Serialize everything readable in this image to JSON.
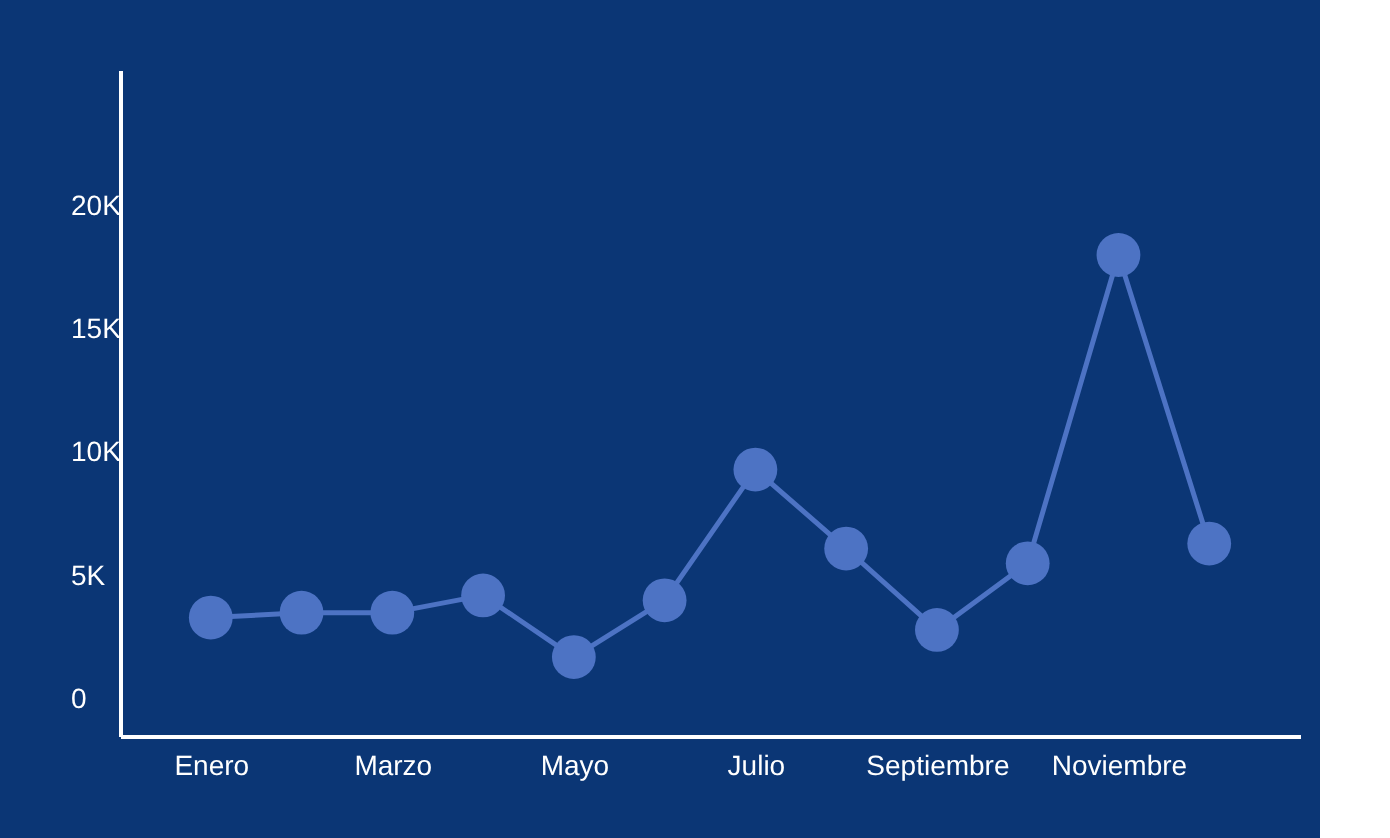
{
  "chart_data": {
    "type": "line",
    "categories": [
      "Enero",
      null,
      "Marzo",
      null,
      "Mayo",
      null,
      "Julio",
      null,
      "Septiembre",
      null,
      "Noviembre",
      null
    ],
    "series": [
      {
        "color": "#4d73c4",
        "values": [
          3.3,
          3.5,
          3.5,
          4.2,
          1.7,
          4.0,
          9.3,
          6.1,
          2.8,
          5.5,
          18.0,
          6.3
        ]
      }
    ],
    "ylim": [
      -1.5,
      25.5
    ],
    "yticks": [
      0,
      {
        "value": 5,
        "label": "5K"
      },
      {
        "value": 10,
        "label": "10K"
      },
      {
        "value": 15,
        "label": "15K"
      },
      {
        "value": 20,
        "label": "20K"
      }
    ],
    "grid": false,
    "marker": "circle",
    "line_style": "solid"
  }
}
